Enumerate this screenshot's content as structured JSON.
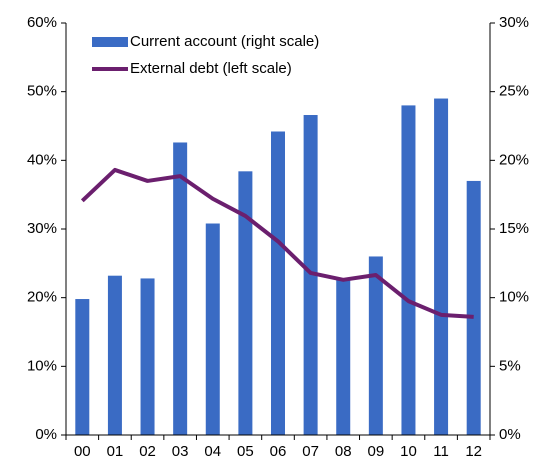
{
  "chart_data": {
    "type": "bar-line",
    "categories": [
      "00",
      "01",
      "02",
      "03",
      "04",
      "05",
      "06",
      "07",
      "08",
      "09",
      "10",
      "11",
      "12"
    ],
    "series": [
      {
        "name": "Current account (right scale)",
        "type": "bar",
        "axis": "y2",
        "color": "#3a6bc4",
        "values": [
          9.9,
          11.6,
          11.4,
          21.3,
          15.4,
          19.2,
          22.1,
          23.3,
          11.3,
          13.0,
          24.0,
          24.5,
          18.5
        ]
      },
      {
        "name": "External debt (left scale)",
        "type": "line",
        "axis": "y",
        "color": "#6b1f6e",
        "values": [
          34.1,
          38.6,
          37.0,
          37.7,
          34.4,
          31.9,
          28.2,
          23.6,
          22.6,
          23.3,
          19.5,
          17.5,
          17.2
        ]
      }
    ],
    "ylim": [
      0,
      60
    ],
    "yticks": [
      {
        "value": 0,
        "label": "0%"
      },
      {
        "value": 10,
        "label": "10%"
      },
      {
        "value": 20,
        "label": "20%"
      },
      {
        "value": 30,
        "label": "30%"
      },
      {
        "value": 40,
        "label": "40%"
      },
      {
        "value": 50,
        "label": "50%"
      },
      {
        "value": 60,
        "label": "60%"
      }
    ],
    "y2lim": [
      0,
      30
    ],
    "y2ticks": [
      {
        "value": 0,
        "label": "0%"
      },
      {
        "value": 5,
        "label": "5%"
      },
      {
        "value": 10,
        "label": "10%"
      },
      {
        "value": 15,
        "label": "15%"
      },
      {
        "value": 20,
        "label": "20%"
      },
      {
        "value": 25,
        "label": "25%"
      },
      {
        "value": 30,
        "label": "30%"
      }
    ],
    "legend": "top-left"
  }
}
